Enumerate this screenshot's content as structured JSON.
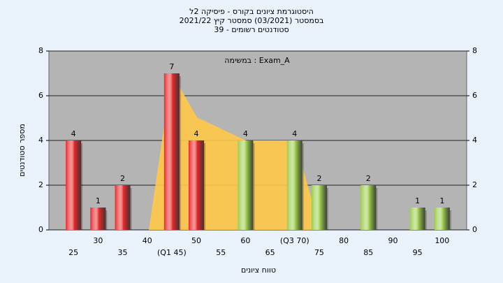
{
  "chart_data": {
    "type": "bar",
    "title": [
      "היסטוגרמת ציונים בקורס - פיסיקה 2ל",
      "בסמסטר (03/2021) סמסטר קיץ 2021/22",
      "סטודנטים רשומים - 39"
    ],
    "annotation": "במשימה : Exam_A",
    "x_label": "טווח ציונים",
    "y_label": "מספר סטודנטים",
    "categories": [
      "25",
      "30",
      "35",
      "40",
      "(Q1 45)",
      "50",
      "55",
      "60",
      "65",
      "(Q3 70)",
      "75",
      "80",
      "85",
      "90",
      "95",
      "100"
    ],
    "values": [
      4,
      1,
      2,
      0,
      7,
      4,
      0,
      4,
      0,
      4,
      2,
      0,
      2,
      0,
      1,
      1
    ],
    "colors": [
      "#e8282b",
      "#e8282b",
      "#e8282b",
      "#e8282b",
      "#e8282b",
      "#e8282b",
      "#e8282b",
      "#9ccc4c",
      "#9ccc4c",
      "#9ccc4c",
      "#9ccc4c",
      "#9ccc4c",
      "#9ccc4c",
      "#9ccc4c",
      "#9ccc4c",
      "#9ccc4c"
    ],
    "ylim": [
      0,
      8
    ],
    "yticks": [
      0,
      2,
      4,
      6,
      8
    ],
    "y2lim": [
      0,
      8
    ],
    "y2ticks": [
      0,
      2,
      4,
      6,
      8
    ],
    "grid": true
  }
}
